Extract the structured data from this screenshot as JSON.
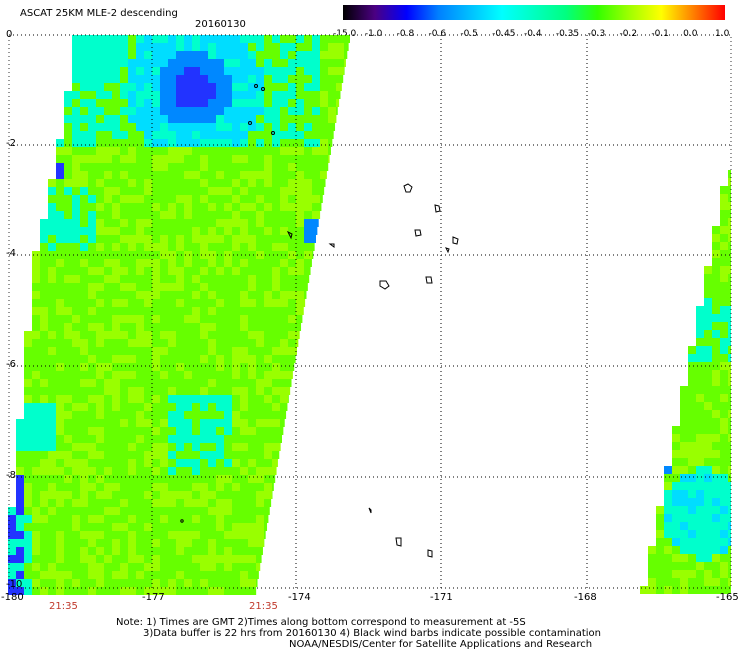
{
  "header": {
    "title": "ASCAT 25KM MLE-2 descending",
    "date": "20160130"
  },
  "colorbar": {
    "labels": [
      "-15.0",
      "-1.0",
      "-0.8",
      "-0.6",
      "-0.5",
      "-0.45",
      "-0.4",
      "-0.35",
      "-0.3",
      "-0.2",
      "-0.1",
      "0.0",
      "1.0"
    ],
    "colors": [
      "#000000",
      "#4b0082",
      "#0000ff",
      "#0080ff",
      "#00c0ff",
      "#00ffff",
      "#00ffc0",
      "#00ff80",
      "#33ff00",
      "#a0ff00",
      "#ffff00",
      "#ff8000",
      "#ff0000"
    ]
  },
  "axes": {
    "y_ticks": [
      "0",
      "-2",
      "-4",
      "-6",
      "-8",
      "-10"
    ],
    "x_ticks": [
      "-180",
      "-177",
      "-174",
      "-171",
      "-168",
      "-165"
    ],
    "time_labels": [
      "21:35",
      "21:35"
    ]
  },
  "notes": {
    "line1": "Note: 1) Times are GMT 2)Times along bottom correspond to measurement at -5S",
    "line2": "3)Data buffer is 22 hrs from 20160130 4) Black wind barbs indicate possible contamination",
    "line3": "NOAA/NESDIS/Center for Satellite Applications and Research"
  },
  "swath_colors": {
    "base": "#66ff00",
    "light": "#99ff00",
    "cyan": "#00ffcc",
    "cyan2": "#00ddff",
    "blue": "#0088ff",
    "darkblue": "#2233ff"
  }
}
